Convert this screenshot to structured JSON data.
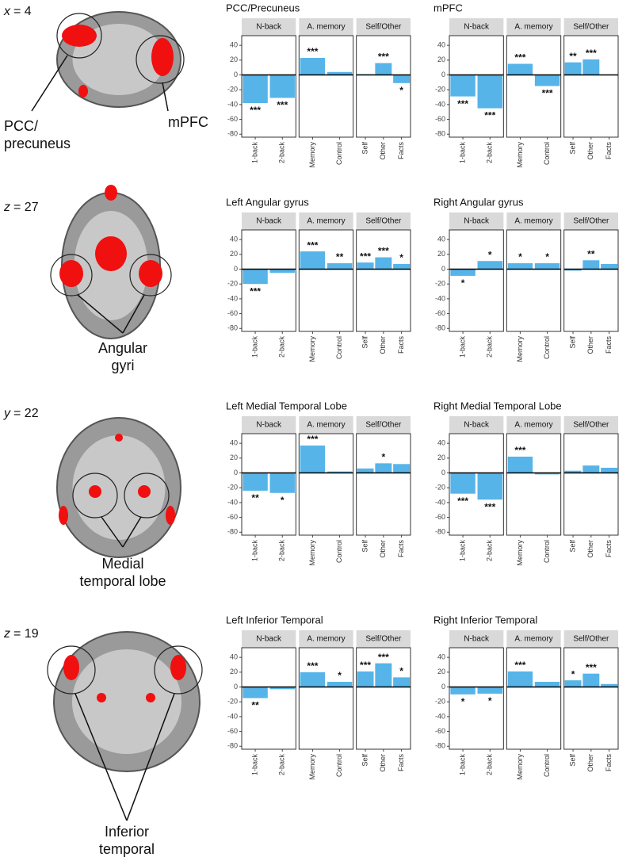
{
  "brain_panels": [
    {
      "axis": "x",
      "position": "= 4",
      "labels": [
        [
          "PCC/",
          "precuneus"
        ],
        [
          "mPFC"
        ]
      ]
    },
    {
      "axis": "z",
      "position": "= 27",
      "labels": [
        [
          "Angular",
          "gyri"
        ]
      ]
    },
    {
      "axis": "y",
      "position": "= 22",
      "labels": [
        [
          "Medial",
          "temporal lobe"
        ]
      ]
    },
    {
      "axis": "z",
      "position": "= 19",
      "labels": [
        [
          "Inferior",
          "temporal"
        ]
      ]
    }
  ],
  "chart_data": [
    {
      "type": "bar",
      "title": "PCC/Precuneus",
      "color": "#56b4e9",
      "ylim": [
        -84,
        53
      ],
      "yticks": [
        -80,
        -60,
        -40,
        -20,
        0,
        20,
        40
      ],
      "facets": [
        {
          "name": "N-back",
          "categories": [
            "1-back",
            "2-back"
          ],
          "values": [
            -38,
            -31
          ],
          "annotations": [
            "***",
            "***"
          ]
        },
        {
          "name": "A. memory",
          "categories": [
            "Memory",
            "Control"
          ],
          "values": [
            23,
            4
          ],
          "annotations": [
            "***",
            null
          ]
        },
        {
          "name": "Self/Other",
          "categories": [
            "Self",
            "Other",
            "Facts"
          ],
          "values": [
            1,
            16,
            -11
          ],
          "annotations": [
            null,
            "***",
            "*"
          ]
        }
      ]
    },
    {
      "type": "bar",
      "title": "mPFC",
      "color": "#56b4e9",
      "ylim": [
        -84,
        53
      ],
      "yticks": [
        -80,
        -60,
        -40,
        -20,
        0,
        20,
        40
      ],
      "facets": [
        {
          "name": "N-back",
          "categories": [
            "1-back",
            "2-back"
          ],
          "values": [
            -29,
            -45
          ],
          "annotations": [
            "***",
            "***"
          ]
        },
        {
          "name": "A. memory",
          "categories": [
            "Memory",
            "Control"
          ],
          "values": [
            15,
            -15
          ],
          "annotations": [
            "***",
            "***"
          ]
        },
        {
          "name": "Self/Other",
          "categories": [
            "Self",
            "Other",
            "Facts"
          ],
          "values": [
            17,
            21,
            0
          ],
          "annotations": [
            "**",
            "***",
            null
          ]
        }
      ]
    },
    {
      "type": "bar",
      "title": "Left Angular gyrus",
      "color": "#56b4e9",
      "ylim": [
        -84,
        53
      ],
      "yticks": [
        -80,
        -60,
        -40,
        -20,
        0,
        20,
        40
      ],
      "facets": [
        {
          "name": "N-back",
          "categories": [
            "1-back",
            "2-back"
          ],
          "values": [
            -20,
            -5
          ],
          "annotations": [
            "***",
            null
          ]
        },
        {
          "name": "A. memory",
          "categories": [
            "Memory",
            "Control"
          ],
          "values": [
            24,
            8
          ],
          "annotations": [
            "***",
            "**"
          ]
        },
        {
          "name": "Self/Other",
          "categories": [
            "Self",
            "Other",
            "Facts"
          ],
          "values": [
            9,
            16,
            7
          ],
          "annotations": [
            "***",
            "***",
            "*"
          ]
        }
      ]
    },
    {
      "type": "bar",
      "title": "Right Angular gyrus",
      "color": "#56b4e9",
      "ylim": [
        -84,
        53
      ],
      "yticks": [
        -80,
        -60,
        -40,
        -20,
        0,
        20,
        40
      ],
      "facets": [
        {
          "name": "N-back",
          "categories": [
            "1-back",
            "2-back"
          ],
          "values": [
            -9,
            11
          ],
          "annotations": [
            "*",
            "*"
          ]
        },
        {
          "name": "A. memory",
          "categories": [
            "Memory",
            "Control"
          ],
          "values": [
            8,
            8
          ],
          "annotations": [
            "*",
            "*"
          ]
        },
        {
          "name": "Self/Other",
          "categories": [
            "Self",
            "Other",
            "Facts"
          ],
          "values": [
            -2,
            12,
            7
          ],
          "annotations": [
            null,
            "**",
            null
          ]
        }
      ]
    },
    {
      "type": "bar",
      "title": "Left Medial Temporal Lobe",
      "color": "#56b4e9",
      "ylim": [
        -84,
        53
      ],
      "yticks": [
        -80,
        -60,
        -40,
        -20,
        0,
        20,
        40
      ],
      "facets": [
        {
          "name": "N-back",
          "categories": [
            "1-back",
            "2-back"
          ],
          "values": [
            -24,
            -27
          ],
          "annotations": [
            "**",
            "*"
          ]
        },
        {
          "name": "A. memory",
          "categories": [
            "Memory",
            "Control"
          ],
          "values": [
            37,
            2
          ],
          "annotations": [
            "***",
            null
          ]
        },
        {
          "name": "Self/Other",
          "categories": [
            "Self",
            "Other",
            "Facts"
          ],
          "values": [
            6,
            13,
            12
          ],
          "annotations": [
            null,
            "*",
            null
          ]
        }
      ]
    },
    {
      "type": "bar",
      "title": "Right Medial Temporal Lobe",
      "color": "#56b4e9",
      "ylim": [
        -84,
        53
      ],
      "yticks": [
        -80,
        -60,
        -40,
        -20,
        0,
        20,
        40
      ],
      "facets": [
        {
          "name": "N-back",
          "categories": [
            "1-back",
            "2-back"
          ],
          "values": [
            -28,
            -36
          ],
          "annotations": [
            "***",
            "***"
          ]
        },
        {
          "name": "A. memory",
          "categories": [
            "Memory",
            "Control"
          ],
          "values": [
            22,
            -2
          ],
          "annotations": [
            "***",
            null
          ]
        },
        {
          "name": "Self/Other",
          "categories": [
            "Self",
            "Other",
            "Facts"
          ],
          "values": [
            3,
            10,
            7
          ],
          "annotations": [
            null,
            null,
            null
          ]
        }
      ]
    },
    {
      "type": "bar",
      "title": "Left Inferior Temporal",
      "color": "#56b4e9",
      "ylim": [
        -84,
        53
      ],
      "yticks": [
        -80,
        -60,
        -40,
        -20,
        0,
        20,
        40
      ],
      "facets": [
        {
          "name": "N-back",
          "categories": [
            "1-back",
            "2-back"
          ],
          "values": [
            -15,
            -3
          ],
          "annotations": [
            "**",
            null
          ]
        },
        {
          "name": "A. memory",
          "categories": [
            "Memory",
            "Control"
          ],
          "values": [
            20,
            7
          ],
          "annotations": [
            "***",
            "*"
          ]
        },
        {
          "name": "Self/Other",
          "categories": [
            "Self",
            "Other",
            "Facts"
          ],
          "values": [
            21,
            32,
            13
          ],
          "annotations": [
            "***",
            "***",
            "*"
          ]
        }
      ]
    },
    {
      "type": "bar",
      "title": "Right Inferior Temporal",
      "color": "#56b4e9",
      "ylim": [
        -84,
        53
      ],
      "yticks": [
        -80,
        -60,
        -40,
        -20,
        0,
        20,
        40
      ],
      "facets": [
        {
          "name": "N-back",
          "categories": [
            "1-back",
            "2-back"
          ],
          "values": [
            -10,
            -9
          ],
          "annotations": [
            "*",
            "*"
          ]
        },
        {
          "name": "A. memory",
          "categories": [
            "Memory",
            "Control"
          ],
          "values": [
            21,
            7
          ],
          "annotations": [
            "***",
            null
          ]
        },
        {
          "name": "Self/Other",
          "categories": [
            "Self",
            "Other",
            "Facts"
          ],
          "values": [
            9,
            18,
            4
          ],
          "annotations": [
            "*",
            "***",
            null
          ]
        }
      ]
    }
  ]
}
